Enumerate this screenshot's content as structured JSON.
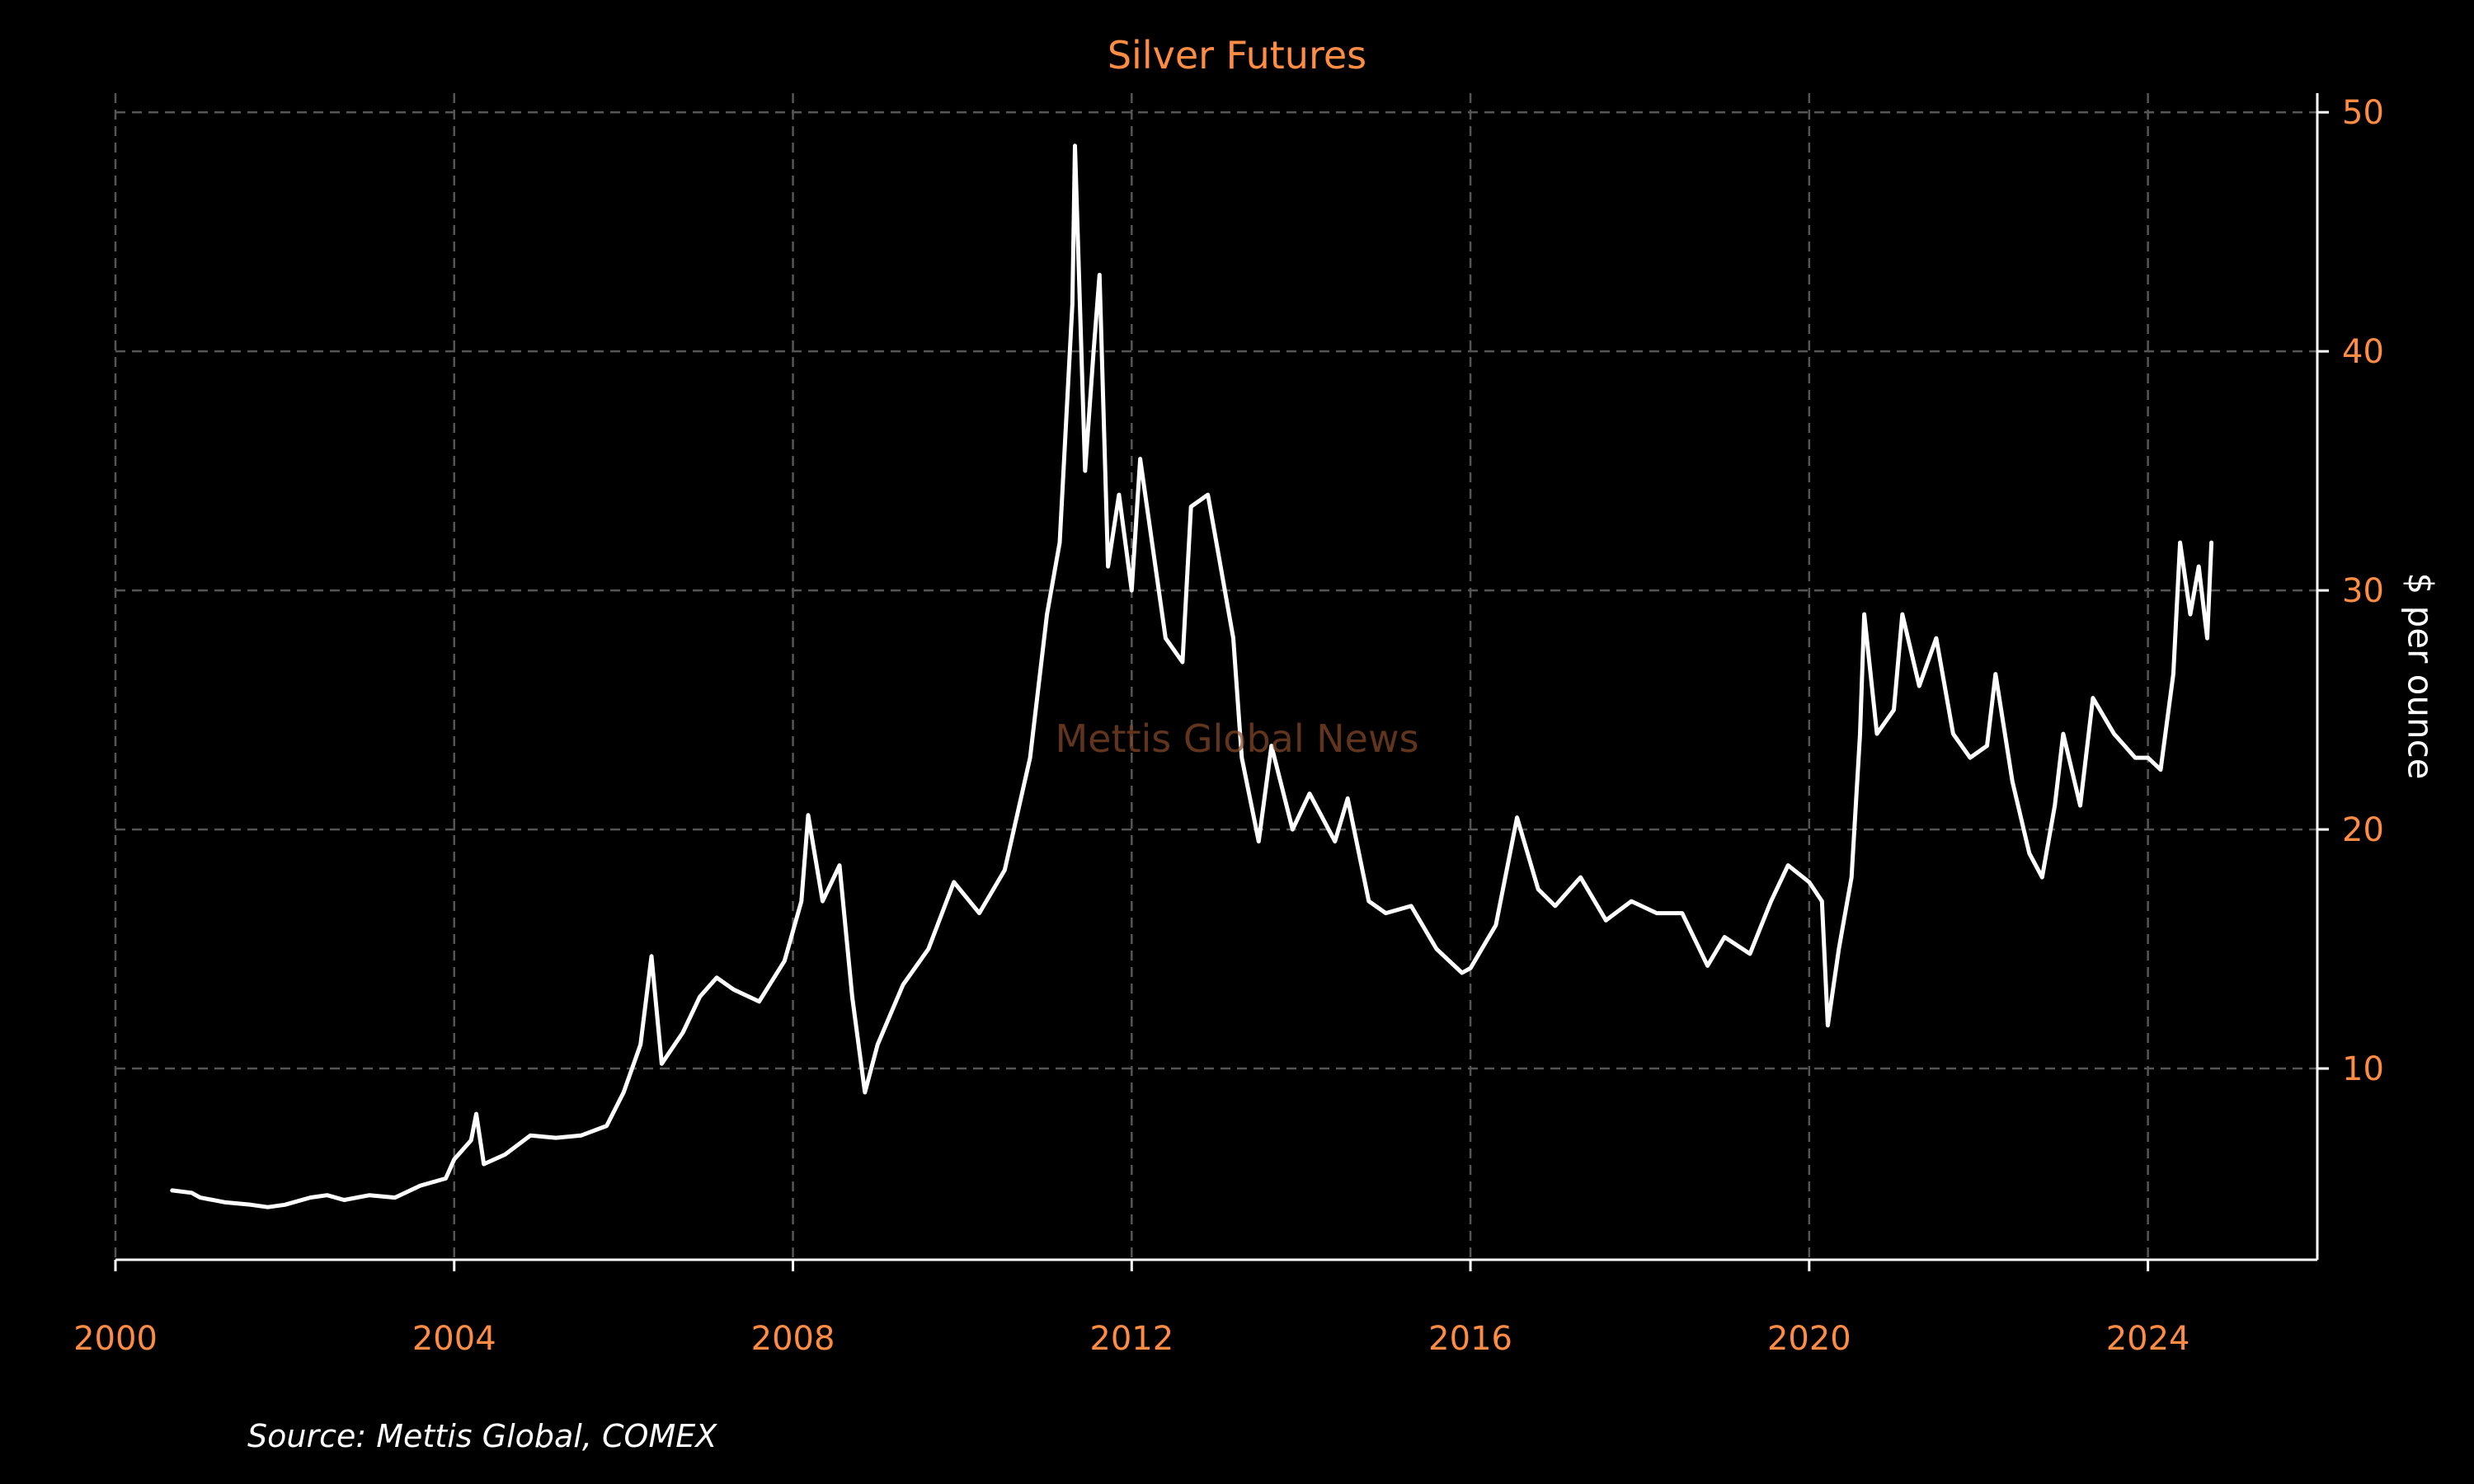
{
  "colors": {
    "background": "#000000",
    "accent": "#ff8c42",
    "line": "#ffffff",
    "grid": "#555555",
    "axis": "#ffffff"
  },
  "chart_data": {
    "type": "line",
    "title": "Silver Futures",
    "xlabel": "",
    "ylabel": "$ per ounce",
    "xlim": [
      2000,
      2026
    ],
    "ylim": [
      2,
      50.8
    ],
    "xticks": [
      2000,
      2004,
      2008,
      2012,
      2016,
      2020,
      2024
    ],
    "yticks": [
      10,
      20,
      30,
      40,
      50
    ],
    "y_axis_side": "right",
    "grid": true,
    "legend": "none",
    "watermark": "Mettis Global News",
    "source": "Source: Mettis Global, COMEX",
    "series": [
      {
        "values": [
          [
            2000.67,
            4.9
          ],
          [
            2000.9,
            4.8
          ],
          [
            2001.0,
            4.6
          ],
          [
            2001.3,
            4.4
          ],
          [
            2001.6,
            4.3
          ],
          [
            2001.8,
            4.2
          ],
          [
            2002.0,
            4.3
          ],
          [
            2002.3,
            4.6
          ],
          [
            2002.5,
            4.7
          ],
          [
            2002.7,
            4.5
          ],
          [
            2003.0,
            4.7
          ],
          [
            2003.3,
            4.6
          ],
          [
            2003.6,
            5.1
          ],
          [
            2003.9,
            5.4
          ],
          [
            2004.0,
            6.2
          ],
          [
            2004.2,
            7.0
          ],
          [
            2004.26,
            8.1
          ],
          [
            2004.35,
            6.0
          ],
          [
            2004.6,
            6.4
          ],
          [
            2004.9,
            7.2
          ],
          [
            2005.2,
            7.1
          ],
          [
            2005.5,
            7.2
          ],
          [
            2005.8,
            7.6
          ],
          [
            2006.0,
            9.0
          ],
          [
            2006.2,
            11.0
          ],
          [
            2006.33,
            14.7
          ],
          [
            2006.45,
            10.2
          ],
          [
            2006.7,
            11.5
          ],
          [
            2006.9,
            13.0
          ],
          [
            2007.1,
            13.8
          ],
          [
            2007.3,
            13.3
          ],
          [
            2007.6,
            12.8
          ],
          [
            2007.9,
            14.5
          ],
          [
            2008.1,
            17.0
          ],
          [
            2008.18,
            20.6
          ],
          [
            2008.35,
            17.0
          ],
          [
            2008.55,
            18.5
          ],
          [
            2008.7,
            13.0
          ],
          [
            2008.85,
            9.0
          ],
          [
            2009.0,
            11.0
          ],
          [
            2009.3,
            13.5
          ],
          [
            2009.6,
            15.0
          ],
          [
            2009.9,
            17.8
          ],
          [
            2010.2,
            16.5
          ],
          [
            2010.5,
            18.3
          ],
          [
            2010.8,
            23.0
          ],
          [
            2011.0,
            29.0
          ],
          [
            2011.15,
            32.0
          ],
          [
            2011.3,
            42.0
          ],
          [
            2011.33,
            48.6
          ],
          [
            2011.45,
            35.0
          ],
          [
            2011.55,
            40.0
          ],
          [
            2011.62,
            43.2
          ],
          [
            2011.72,
            31.0
          ],
          [
            2011.85,
            34.0
          ],
          [
            2012.0,
            30.0
          ],
          [
            2012.1,
            35.5
          ],
          [
            2012.4,
            28.0
          ],
          [
            2012.6,
            27.0
          ],
          [
            2012.7,
            33.5
          ],
          [
            2012.9,
            34.0
          ],
          [
            2013.0,
            32.0
          ],
          [
            2013.2,
            28.0
          ],
          [
            2013.3,
            23.0
          ],
          [
            2013.5,
            19.5
          ],
          [
            2013.65,
            23.5
          ],
          [
            2013.9,
            20.0
          ],
          [
            2014.1,
            21.5
          ],
          [
            2014.4,
            19.5
          ],
          [
            2014.55,
            21.3
          ],
          [
            2014.8,
            17.0
          ],
          [
            2015.0,
            16.5
          ],
          [
            2015.3,
            16.8
          ],
          [
            2015.6,
            15.0
          ],
          [
            2015.9,
            14.0
          ],
          [
            2016.0,
            14.2
          ],
          [
            2016.3,
            16.0
          ],
          [
            2016.55,
            20.5
          ],
          [
            2016.8,
            17.5
          ],
          [
            2017.0,
            16.8
          ],
          [
            2017.3,
            18.0
          ],
          [
            2017.6,
            16.2
          ],
          [
            2017.9,
            17.0
          ],
          [
            2018.2,
            16.5
          ],
          [
            2018.5,
            16.5
          ],
          [
            2018.8,
            14.3
          ],
          [
            2019.0,
            15.5
          ],
          [
            2019.3,
            14.8
          ],
          [
            2019.55,
            17.0
          ],
          [
            2019.75,
            18.5
          ],
          [
            2020.0,
            17.8
          ],
          [
            2020.15,
            17.0
          ],
          [
            2020.22,
            11.8
          ],
          [
            2020.35,
            15.0
          ],
          [
            2020.5,
            18.0
          ],
          [
            2020.6,
            24.0
          ],
          [
            2020.65,
            29.0
          ],
          [
            2020.8,
            24.0
          ],
          [
            2021.0,
            25.0
          ],
          [
            2021.1,
            29.0
          ],
          [
            2021.3,
            26.0
          ],
          [
            2021.5,
            28.0
          ],
          [
            2021.7,
            24.0
          ],
          [
            2021.9,
            23.0
          ],
          [
            2022.1,
            23.5
          ],
          [
            2022.2,
            26.5
          ],
          [
            2022.4,
            22.0
          ],
          [
            2022.6,
            19.0
          ],
          [
            2022.75,
            18.0
          ],
          [
            2022.9,
            21.0
          ],
          [
            2023.0,
            24.0
          ],
          [
            2023.2,
            21.0
          ],
          [
            2023.35,
            25.5
          ],
          [
            2023.6,
            24.0
          ],
          [
            2023.85,
            23.0
          ],
          [
            2024.0,
            23.0
          ],
          [
            2024.15,
            22.5
          ],
          [
            2024.3,
            26.5
          ],
          [
            2024.38,
            32.0
          ],
          [
            2024.5,
            29.0
          ],
          [
            2024.6,
            31.0
          ],
          [
            2024.7,
            28.0
          ],
          [
            2024.75,
            32.0
          ]
        ]
      }
    ]
  }
}
